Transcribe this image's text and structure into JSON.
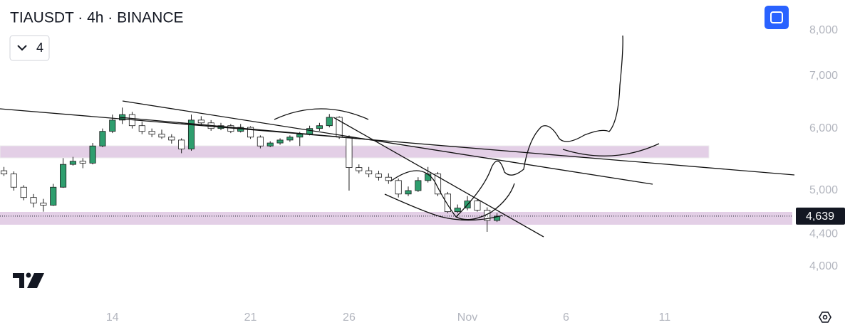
{
  "chart_data": {
    "type": "candlestick",
    "title": "TIAUSDT · 4h · BINANCE",
    "x": [
      8.5,
      9,
      9.5,
      10,
      10.5,
      11,
      11.5,
      12,
      12.5,
      13,
      13.5,
      14,
      14.5,
      15,
      15.5,
      16,
      16.5,
      17,
      17.5,
      18,
      18.5,
      19,
      19.5,
      20,
      20.5,
      21,
      21.5,
      22,
      22.5,
      23,
      23.5,
      24,
      24.5,
      25,
      25.5,
      26,
      26.5,
      27,
      27.5,
      28,
      28.5,
      29,
      29.5,
      30,
      30.5,
      31,
      31.5,
      32,
      32.5,
      33,
      33.5
    ],
    "open": [
      5300,
      5250,
      5050,
      4900,
      4820,
      4790,
      5050,
      5400,
      5450,
      5420,
      5700,
      5950,
      6150,
      6250,
      6050,
      5950,
      5900,
      5850,
      5800,
      5650,
      6150,
      6100,
      6000,
      6050,
      5950,
      6020,
      5850,
      5700,
      5750,
      5800,
      5850,
      5900,
      6000,
      6050,
      6200,
      5850,
      5350,
      5300,
      5250,
      5200,
      5150,
      4950,
      5000,
      5150,
      5250,
      4950,
      4700,
      4750,
      4850,
      4720,
      4580
    ],
    "high": [
      5360,
      5290,
      5080,
      4950,
      4880,
      5100,
      5500,
      5520,
      5500,
      5750,
      6000,
      6250,
      6380,
      6300,
      6120,
      6000,
      5980,
      5900,
      5830,
      6250,
      6220,
      6150,
      6100,
      6080,
      6080,
      6040,
      5880,
      5780,
      5830,
      5880,
      5940,
      6050,
      6100,
      6260,
      6220,
      5880,
      5400,
      5360,
      5300,
      5260,
      5180,
      5060,
      5200,
      5360,
      5280,
      4980,
      4800,
      4920,
      4870,
      4760,
      4680
    ],
    "low": [
      5220,
      5000,
      4860,
      4760,
      4700,
      4780,
      5040,
      5380,
      5340,
      5400,
      5680,
      5920,
      6080,
      6000,
      5900,
      5850,
      5820,
      5740,
      5580,
      5620,
      6060,
      5960,
      5970,
      5920,
      5930,
      5820,
      5660,
      5680,
      5720,
      5770,
      5700,
      5880,
      5960,
      6020,
      5820,
      5000,
      5260,
      5200,
      5150,
      5100,
      4900,
      4920,
      4980,
      5120,
      4920,
      4680,
      4680,
      4720,
      4700,
      4430,
      4560
    ],
    "close": [
      5250,
      5050,
      4900,
      4820,
      4790,
      5050,
      5400,
      5450,
      5420,
      5700,
      5950,
      6150,
      6250,
      6050,
      5950,
      5900,
      5850,
      5800,
      5650,
      6150,
      6100,
      6000,
      6050,
      5950,
      6020,
      5850,
      5700,
      5750,
      5800,
      5850,
      5900,
      6000,
      6050,
      6200,
      5850,
      5350,
      5300,
      5250,
      5200,
      5150,
      4950,
      5000,
      5150,
      5250,
      4950,
      4700,
      4750,
      4850,
      4720,
      4580,
      4639
    ],
    "up_color": "#2e9e6e",
    "down_color": "#ffffff",
    "wick_color": "#1a1a1a",
    "xlim": [
      8.3,
      48.4
    ],
    "xticks": [
      14,
      21,
      26,
      {
        "value": 32,
        "label": "Nov"
      },
      {
        "value": 37,
        "label": "6"
      },
      {
        "value": 42,
        "label": "11"
      }
    ],
    "ylim": [
      3565,
      8750
    ],
    "log_scale": true,
    "yticks": [
      {
        "value": 4000,
        "label": "4,000"
      },
      {
        "value": 4400,
        "label": "4,400"
      },
      {
        "value": 5000,
        "label": "5,000"
      },
      {
        "value": 6000,
        "label": "6,000"
      },
      {
        "value": 7000,
        "label": "7,000"
      },
      {
        "value": 8000,
        "label": "8,000"
      }
    ],
    "last_price": {
      "value": 4639,
      "label": "4,639"
    }
  },
  "indicator_toggle": {
    "count": "4"
  }
}
